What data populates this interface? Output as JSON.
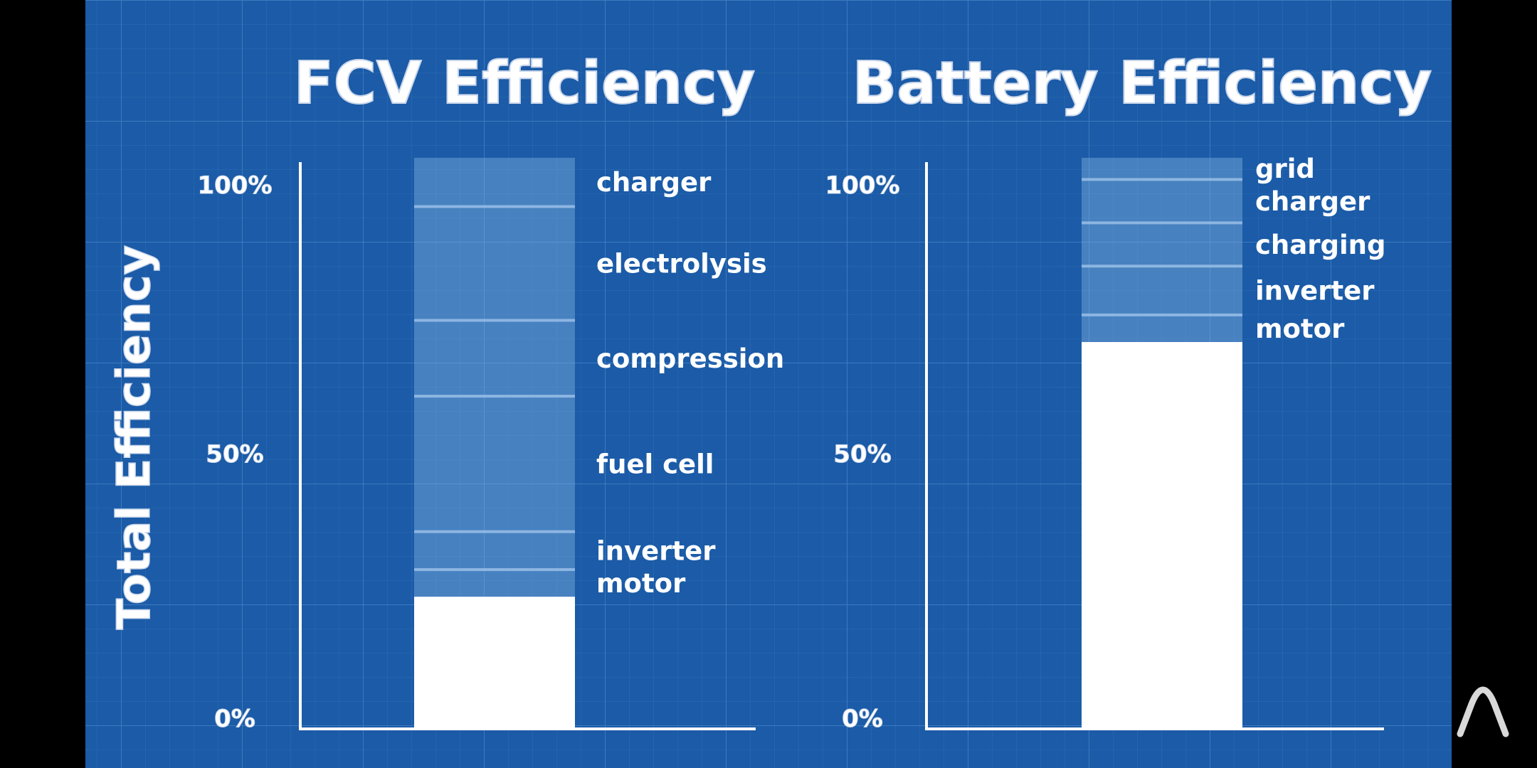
{
  "chart_data": [
    {
      "type": "bar",
      "title": "FCV Efficiency",
      "ylabel": "Total Efficiency",
      "ylim": [
        0,
        100
      ],
      "yticks": [
        "0%",
        "50%",
        "100%"
      ],
      "total_efficiency": 24,
      "stages": [
        {
          "label": "charger",
          "from": 105,
          "to": 96
        },
        {
          "label": "electrolysis",
          "from": 96,
          "to": 75
        },
        {
          "label": "compression",
          "from": 75,
          "to": 61
        },
        {
          "label": "fuel cell",
          "from": 61,
          "to": 36
        },
        {
          "label": "inverter",
          "from": 36,
          "to": 29
        },
        {
          "label": "motor",
          "from": 29,
          "to": 24
        }
      ]
    },
    {
      "type": "bar",
      "title": "Battery Efficiency",
      "ylabel": "",
      "ylim": [
        0,
        100
      ],
      "yticks": [
        "0%",
        "50%",
        "100%"
      ],
      "total_efficiency": 71,
      "stages": [
        {
          "label": "grid",
          "from": 105,
          "to": 101
        },
        {
          "label": "charger",
          "from": 101,
          "to": 93
        },
        {
          "label": "charging",
          "from": 93,
          "to": 85
        },
        {
          "label": "inverter",
          "from": 85,
          "to": 76
        },
        {
          "label": "motor",
          "from": 76,
          "to": 71
        }
      ]
    }
  ],
  "overlay": {
    "icon": "arch-logo-icon"
  },
  "colors": {
    "background": "#1a5aa6",
    "grid": "#3a78c0",
    "bar": "#ffffff",
    "loss": "#7fb0e0"
  }
}
